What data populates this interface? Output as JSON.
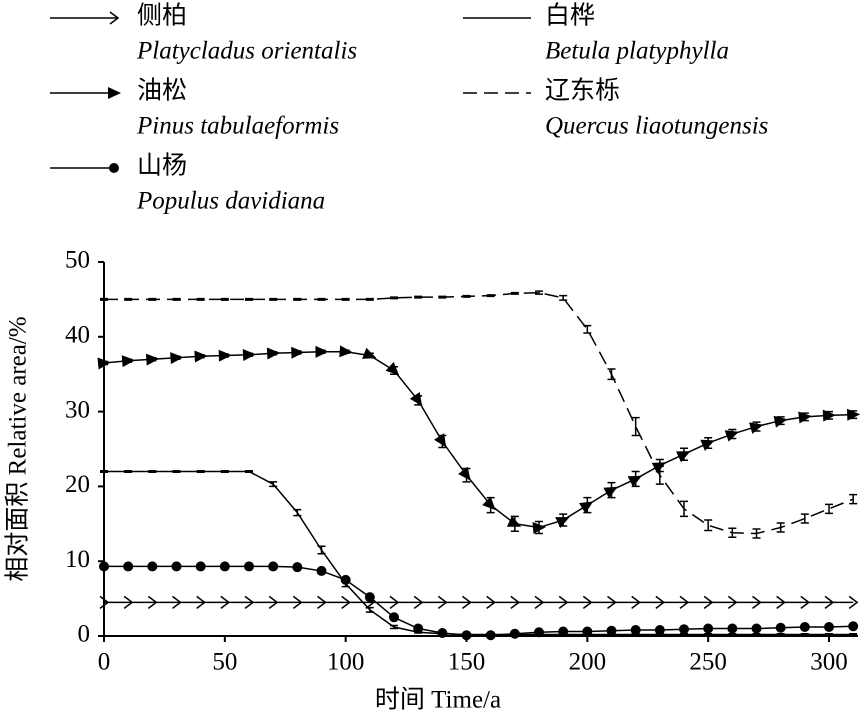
{
  "chart_data": {
    "type": "line",
    "x_label": "时间 Time/a",
    "y_label": "相对面积 Relative area/%",
    "x": [
      0,
      10,
      20,
      30,
      40,
      50,
      60,
      70,
      80,
      90,
      100,
      110,
      120,
      130,
      140,
      150,
      160,
      170,
      180,
      190,
      200,
      210,
      220,
      230,
      240,
      250,
      260,
      270,
      280,
      290,
      300,
      310
    ],
    "xlim": [
      0,
      312
    ],
    "xticks": [
      0,
      50,
      100,
      150,
      200,
      250,
      300
    ],
    "ylim": [
      0,
      50
    ],
    "yticks": [
      0,
      10,
      20,
      30,
      40,
      50
    ],
    "series": [
      {
        "name": "侧柏",
        "latin": "Platycladus orientalis",
        "color": "#000000",
        "marker": "open-arrow",
        "dash": false,
        "values": [
          4.5,
          4.5,
          4.5,
          4.5,
          4.5,
          4.5,
          4.5,
          4.5,
          4.5,
          4.5,
          4.5,
          4.5,
          4.5,
          4.5,
          4.5,
          4.5,
          4.5,
          4.5,
          4.5,
          4.5,
          4.5,
          4.5,
          4.5,
          4.5,
          4.5,
          4.5,
          4.5,
          4.5,
          4.5,
          4.5,
          4.5,
          4.5
        ]
      },
      {
        "name": "油松",
        "latin": "Pinus tabulaeformis",
        "color": "#000000",
        "marker": "filled-arrow",
        "dash": false,
        "values": [
          36.5,
          36.8,
          37,
          37.2,
          37.4,
          37.5,
          37.6,
          37.8,
          37.9,
          38,
          38,
          37.5,
          35.5,
          31.5,
          26,
          21.5,
          17.5,
          15,
          14.5,
          15.5,
          17.5,
          19.5,
          21,
          22.8,
          24.3,
          25.8,
          27,
          28,
          28.8,
          29.3,
          29.5,
          29.6
        ],
        "errors": [
          0.2,
          0.2,
          0.2,
          0.2,
          0.2,
          0.2,
          0.2,
          0.2,
          0.2,
          0.2,
          0.2,
          0.3,
          0.5,
          0.6,
          0.8,
          0.9,
          1,
          1,
          0.8,
          0.8,
          1,
          1,
          1,
          0.8,
          0.8,
          0.7,
          0.6,
          0.6,
          0.5,
          0.5,
          0.5,
          0.5
        ]
      },
      {
        "name": "山杨",
        "latin": "Populus davidiana",
        "color": "#000000",
        "marker": "circle",
        "dash": false,
        "values": [
          9.3,
          9.3,
          9.3,
          9.3,
          9.3,
          9.3,
          9.3,
          9.3,
          9.2,
          8.7,
          7.5,
          5.2,
          2.5,
          1,
          0.4,
          0.1,
          0.1,
          0.3,
          0.5,
          0.6,
          0.6,
          0.7,
          0.8,
          0.8,
          0.9,
          1,
          1,
          1,
          1.1,
          1.2,
          1.2,
          1.3
        ]
      },
      {
        "name": "白桦",
        "latin": "Betula platyphylla",
        "color": "#000000",
        "marker": "none",
        "dash": false,
        "values": [
          22,
          22,
          22,
          22,
          22,
          22,
          22,
          20.3,
          16.5,
          11.5,
          7,
          3.5,
          1.2,
          0.5,
          0.3,
          0.2,
          0.2,
          0.2,
          0.2,
          0.2,
          0.2,
          0.2,
          0.2,
          0.2,
          0.2,
          0.2,
          0.2,
          0.2,
          0.2,
          0.2,
          0.2,
          0.2
        ],
        "errors": [
          0.1,
          0.1,
          0.1,
          0.1,
          0.1,
          0.1,
          0.1,
          0.3,
          0.4,
          0.5,
          0.4,
          0.3,
          0.2,
          0.1,
          0.1,
          0.1,
          0.1,
          0.1,
          0.1,
          0.1,
          0.1,
          0.1,
          0.1,
          0.1,
          0.1,
          0.1,
          0.1,
          0.1,
          0.1,
          0.1,
          0.1,
          0.1
        ]
      },
      {
        "name": "辽东栎",
        "latin": "Quercus liaotungensis",
        "color": "#000000",
        "marker": "none",
        "dash": true,
        "values": [
          45,
          45,
          45,
          45,
          45,
          45,
          45,
          45,
          45,
          45,
          45,
          45,
          45.2,
          45.3,
          45.3,
          45.4,
          45.5,
          45.8,
          45.9,
          45.2,
          41,
          35,
          28,
          21.5,
          17,
          14.8,
          13.8,
          13.7,
          14.5,
          15.7,
          17,
          18.3
        ],
        "errors": [
          0.1,
          0.1,
          0.1,
          0.1,
          0.1,
          0.1,
          0.1,
          0.1,
          0.1,
          0.1,
          0.1,
          0.1,
          0.1,
          0.1,
          0.1,
          0.1,
          0.1,
          0.1,
          0.2,
          0.3,
          0.5,
          0.7,
          1.2,
          1.2,
          1,
          0.7,
          0.6,
          0.6,
          0.6,
          0.6,
          0.6,
          0.6
        ]
      }
    ]
  }
}
